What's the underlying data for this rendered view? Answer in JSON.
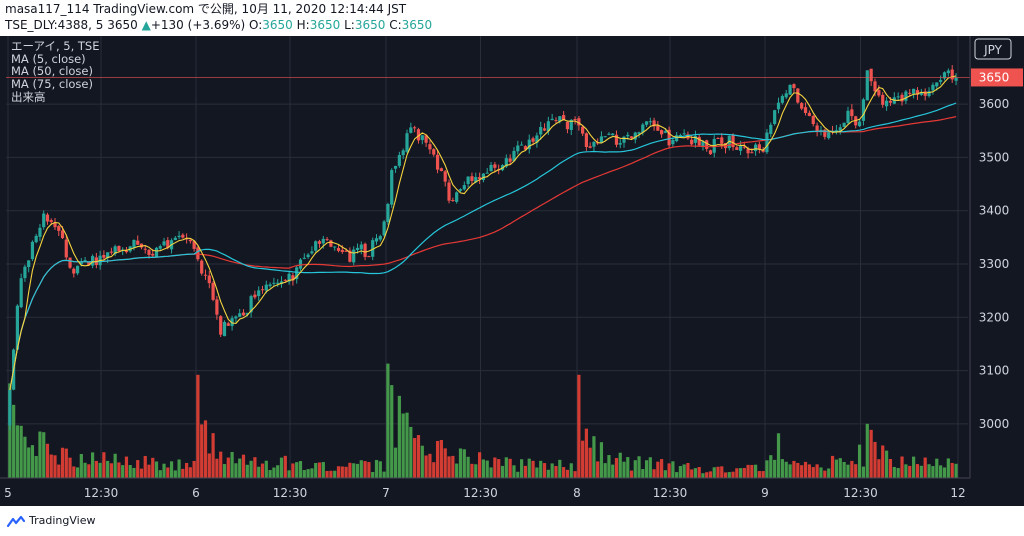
{
  "header": {
    "line1": "masa117_114 TradingView.com で公開, 10月 11, 2020 12:14:44 JST",
    "symbol_prefix": "TSE_DLY:4388, 5 3650",
    "arrow": "▲",
    "change": "+130 (+3.69%)",
    "o_label": "O:",
    "o_value": "3650",
    "h_label": "H:",
    "h_value": "3650",
    "l_label": "L:",
    "l_value": "3650",
    "c_label": "C:",
    "c_value": "3650"
  },
  "legend": {
    "title": "エーアイ, 5, TSE",
    "ma5": "MA (5, close)",
    "ma50": "MA (50, close)",
    "ma75": "MA (75, close)",
    "volume": "出来高"
  },
  "currency": "JPY",
  "last_price_label": "3650",
  "footer": {
    "brand": "TradingView"
  },
  "colors": {
    "background": "#131722",
    "up": "#26a69a",
    "down": "#ef5350",
    "vol_up": "#4caf50",
    "vol_down": "#f44336",
    "ma5": "#f5d33e",
    "ma50": "#26c6da",
    "ma75": "#e53935",
    "grid": "#2a2e39",
    "text": "#d1d4dc"
  },
  "chart_data": {
    "type": "candlestick",
    "interval_minutes": 5,
    "ylim": [
      2925,
      3700
    ],
    "y_ticks": [
      3000,
      3100,
      3200,
      3300,
      3400,
      3500,
      3600
    ],
    "x_ticks": [
      "5",
      "12:30",
      "6",
      "12:30",
      "7",
      "12:30",
      "8",
      "12:30",
      "9",
      "12:30",
      "12"
    ],
    "last_price": 3650,
    "day_keypoints": [
      [
        [
          0,
          3000
        ],
        [
          2,
          3100
        ],
        [
          6,
          3270
        ],
        [
          12,
          3330
        ],
        [
          20,
          3390
        ],
        [
          27,
          3370
        ],
        [
          33,
          3290
        ],
        [
          40,
          3310
        ],
        [
          47,
          3300
        ],
        [
          54,
          3320
        ],
        [
          63,
          3330
        ],
        [
          69,
          3340
        ],
        [
          75,
          3320
        ],
        [
          82,
          3330
        ],
        [
          89,
          3350
        ],
        [
          95,
          3360
        ],
        [
          100,
          3330
        ]
      ],
      [
        [
          0,
          3330
        ],
        [
          4,
          3270
        ],
        [
          8,
          3250
        ],
        [
          13,
          3180
        ],
        [
          18,
          3200
        ],
        [
          25,
          3210
        ],
        [
          35,
          3260
        ],
        [
          42,
          3270
        ],
        [
          48,
          3260
        ],
        [
          55,
          3300
        ],
        [
          62,
          3330
        ],
        [
          68,
          3340
        ],
        [
          75,
          3340
        ],
        [
          81,
          3320
        ],
        [
          86,
          3320
        ],
        [
          92,
          3330
        ],
        [
          97,
          3360
        ],
        [
          100,
          3390
        ]
      ],
      [
        [
          0,
          3400
        ],
        [
          3,
          3480
        ],
        [
          8,
          3520
        ],
        [
          13,
          3550
        ],
        [
          18,
          3540
        ],
        [
          25,
          3500
        ],
        [
          30,
          3450
        ],
        [
          35,
          3420
        ],
        [
          42,
          3460
        ],
        [
          49,
          3470
        ],
        [
          56,
          3480
        ],
        [
          63,
          3490
        ],
        [
          70,
          3510
        ],
        [
          77,
          3530
        ],
        [
          84,
          3560
        ],
        [
          91,
          3570
        ],
        [
          96,
          3560
        ],
        [
          100,
          3580
        ]
      ],
      [
        [
          0,
          3570
        ],
        [
          5,
          3510
        ],
        [
          10,
          3530
        ],
        [
          17,
          3540
        ],
        [
          24,
          3530
        ],
        [
          30,
          3540
        ],
        [
          37,
          3560
        ],
        [
          44,
          3550
        ],
        [
          51,
          3530
        ],
        [
          58,
          3540
        ],
        [
          65,
          3530
        ],
        [
          72,
          3520
        ],
        [
          79,
          3530
        ],
        [
          86,
          3520
        ],
        [
          93,
          3510
        ],
        [
          100,
          3530
        ]
      ],
      [
        [
          0,
          3540
        ],
        [
          6,
          3600
        ],
        [
          12,
          3640
        ],
        [
          18,
          3600
        ],
        [
          24,
          3570
        ],
        [
          30,
          3540
        ],
        [
          37,
          3560
        ],
        [
          43,
          3580
        ],
        [
          49,
          3570
        ],
        [
          53,
          3650
        ],
        [
          57,
          3620
        ],
        [
          63,
          3600
        ],
        [
          70,
          3610
        ],
        [
          77,
          3620
        ],
        [
          84,
          3630
        ],
        [
          91,
          3650
        ],
        [
          100,
          3650
        ]
      ]
    ],
    "daily_volume_profile": [
      [
        [
          0,
          70
        ],
        [
          6,
          45
        ],
        [
          14,
          40
        ],
        [
          26,
          28
        ],
        [
          42,
          22
        ],
        [
          62,
          18
        ],
        [
          80,
          16
        ],
        [
          94,
          16
        ],
        [
          100,
          18
        ]
      ],
      [
        [
          0,
          70
        ],
        [
          6,
          40
        ],
        [
          14,
          30
        ],
        [
          26,
          22
        ],
        [
          42,
          18
        ],
        [
          62,
          15
        ],
        [
          80,
          14
        ],
        [
          94,
          14
        ],
        [
          100,
          14
        ]
      ],
      [
        [
          0,
          100
        ],
        [
          5,
          75
        ],
        [
          12,
          50
        ],
        [
          24,
          32
        ],
        [
          42,
          22
        ],
        [
          62,
          16
        ],
        [
          80,
          14
        ],
        [
          94,
          14
        ],
        [
          100,
          16
        ]
      ],
      [
        [
          0,
          82
        ],
        [
          6,
          45
        ],
        [
          14,
          30
        ],
        [
          26,
          20
        ],
        [
          42,
          15
        ],
        [
          62,
          12
        ],
        [
          80,
          10
        ],
        [
          94,
          10
        ],
        [
          100,
          12
        ]
      ],
      [
        [
          0,
          34
        ],
        [
          6,
          22
        ],
        [
          14,
          18
        ],
        [
          26,
          18
        ],
        [
          42,
          16
        ],
        [
          52,
          30
        ],
        [
          56,
          48
        ],
        [
          62,
          24
        ],
        [
          80,
          16
        ],
        [
          94,
          14
        ],
        [
          100,
          25
        ]
      ]
    ]
  }
}
